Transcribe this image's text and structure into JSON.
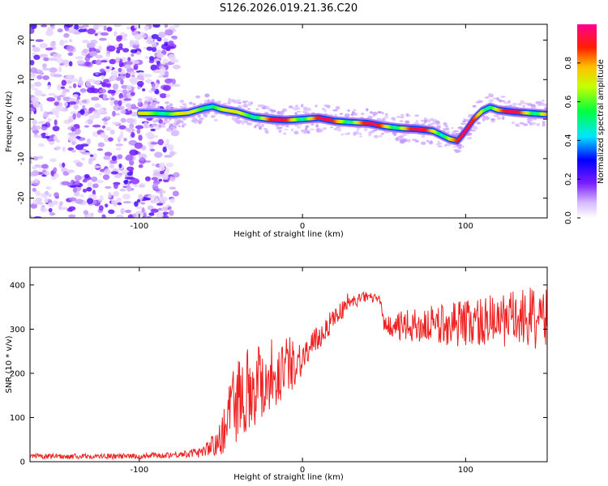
{
  "title": "S126.2026.019.21.36.C20",
  "chart_data": [
    {
      "type": "heatmap",
      "name": "spectrogram",
      "xlabel": "Height of straight line (km)",
      "ylabel": "Frequency (Hz)",
      "xlim": [
        -167,
        150
      ],
      "ylim": [
        -25,
        24
      ],
      "xticks": [
        -100,
        0,
        100
      ],
      "yticks": [
        -20,
        -10,
        0,
        10,
        20
      ],
      "ridge": {
        "x": [
          -100,
          -90,
          -80,
          -70,
          -60,
          -55,
          -50,
          -40,
          -30,
          -20,
          -10,
          0,
          10,
          20,
          30,
          40,
          50,
          60,
          70,
          80,
          85,
          90,
          95,
          100,
          105,
          110,
          115,
          120,
          130,
          140,
          150
        ],
        "y": [
          1.5,
          1.5,
          1.3,
          1.6,
          2.8,
          3.2,
          2.5,
          1.8,
          0.5,
          0.0,
          -0.3,
          0.0,
          0.3,
          -0.5,
          -0.8,
          -1.0,
          -1.8,
          -2.3,
          -2.5,
          -3.0,
          -4.0,
          -5.0,
          -5.5,
          -3.0,
          0.0,
          2.0,
          3.0,
          2.3,
          1.8,
          1.5,
          1.2
        ]
      },
      "colorbar": {
        "label": "Normalized spectral amplitude",
        "range": [
          0.0,
          1.0
        ],
        "ticks": [
          "0.0",
          "0.2",
          "0.4",
          "0.6",
          "0.8"
        ],
        "tick_values": [
          0.0,
          0.2,
          0.4,
          0.6,
          0.8
        ]
      }
    },
    {
      "type": "line",
      "name": "snr",
      "xlabel": "Height of straight line (km)",
      "ylabel": "SNR (10 * v/v)",
      "xlim": [
        -167,
        150
      ],
      "ylim": [
        0,
        440
      ],
      "xticks": [
        -100,
        0,
        100
      ],
      "yticks": [
        0,
        100,
        200,
        300,
        400
      ],
      "line_color": "#ee2222",
      "envelope": {
        "x": [
          -167,
          -100,
          -70,
          -60,
          -50,
          -45,
          -40,
          -30,
          -20,
          -10,
          0,
          10,
          20,
          30,
          40,
          48,
          50,
          60,
          80,
          100,
          120,
          140,
          150
        ],
        "mean": [
          12,
          12,
          18,
          25,
          50,
          120,
          150,
          175,
          195,
          215,
          235,
          280,
          330,
          360,
          375,
          365,
          310,
          305,
          310,
          315,
          320,
          325,
          320
        ],
        "spread": [
          6,
          6,
          8,
          12,
          40,
          80,
          90,
          100,
          90,
          70,
          40,
          30,
          25,
          15,
          12,
          10,
          15,
          35,
          45,
          55,
          60,
          70,
          70
        ]
      }
    }
  ]
}
